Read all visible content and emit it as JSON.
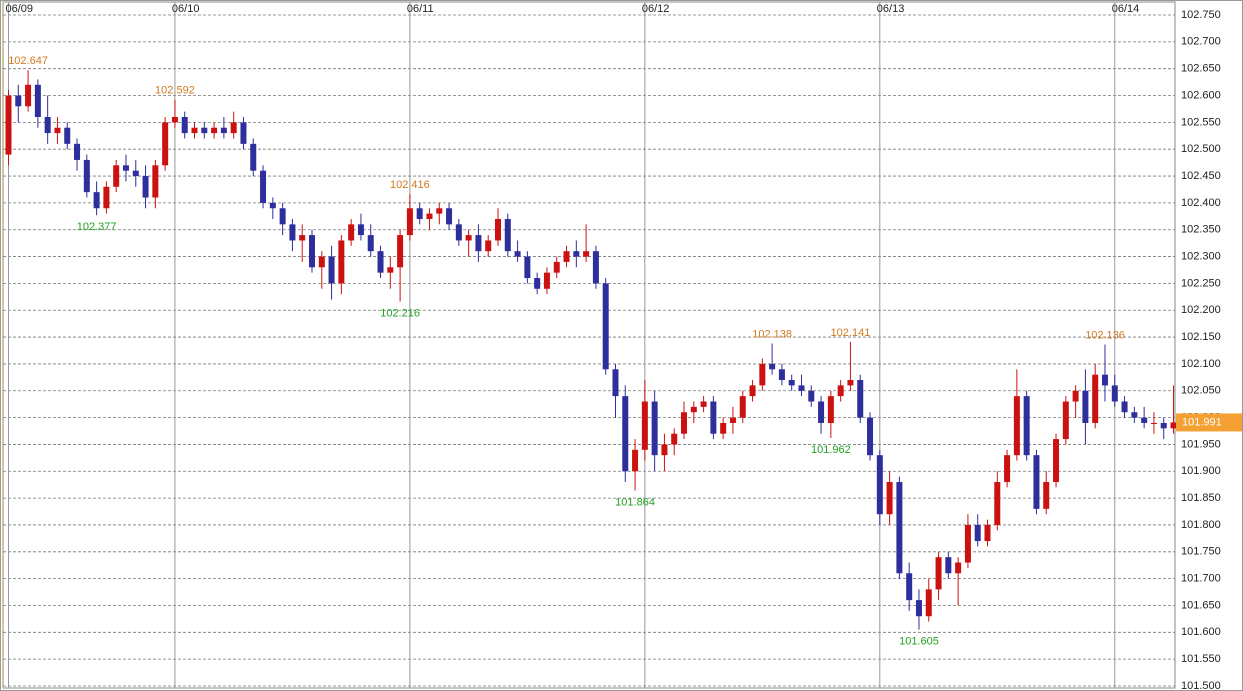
{
  "chart_data": {
    "type": "candlestick",
    "categories": [
      "06/09",
      null,
      null,
      null,
      null,
      null,
      null,
      null,
      null,
      null,
      null,
      null,
      null,
      null,
      null,
      null,
      null,
      "06/10",
      null,
      null,
      null,
      null,
      null,
      null,
      null,
      null,
      null,
      null,
      null,
      null,
      null,
      null,
      null,
      null,
      null,
      null,
      null,
      null,
      null,
      null,
      null,
      "06/11",
      null,
      null,
      null,
      null,
      null,
      null,
      null,
      null,
      null,
      null,
      null,
      null,
      null,
      null,
      null,
      null,
      null,
      null,
      null,
      null,
      null,
      null,
      null,
      "06/12",
      null,
      null,
      null,
      null,
      null,
      null,
      null,
      null,
      null,
      null,
      null,
      null,
      null,
      null,
      null,
      null,
      null,
      null,
      null,
      null,
      null,
      null,
      null,
      "06/13",
      null,
      null,
      null,
      null,
      null,
      null,
      null,
      null,
      null,
      null,
      null,
      null,
      null,
      null,
      null,
      null,
      null,
      null,
      null,
      null,
      null,
      null,
      null,
      "06/14",
      null,
      null,
      null,
      null,
      null,
      null
    ],
    "open": [
      102.49,
      102.6,
      102.58,
      102.62,
      102.56,
      102.53,
      102.54,
      102.51,
      102.48,
      102.42,
      102.39,
      102.43,
      102.47,
      102.46,
      102.45,
      102.41,
      102.47,
      102.55,
      102.56,
      102.53,
      102.54,
      102.53,
      102.54,
      102.53,
      102.55,
      102.51,
      102.46,
      102.4,
      102.39,
      102.36,
      102.33,
      102.34,
      102.28,
      102.3,
      102.25,
      102.33,
      102.36,
      102.34,
      102.31,
      102.27,
      102.28,
      102.34,
      102.39,
      102.37,
      102.38,
      102.39,
      102.36,
      102.33,
      102.34,
      102.31,
      102.33,
      102.37,
      102.31,
      102.3,
      102.26,
      102.24,
      102.27,
      102.29,
      102.31,
      102.3,
      102.31,
      102.25,
      102.09,
      102.04,
      101.9,
      101.94,
      102.03,
      101.93,
      101.95,
      101.97,
      102.01,
      102.02,
      102.03,
      101.97,
      101.99,
      102.0,
      102.04,
      102.06,
      102.1,
      102.09,
      102.07,
      102.06,
      102.05,
      102.03,
      101.99,
      102.04,
      102.06,
      102.07,
      102.0,
      101.93,
      101.82,
      101.88,
      101.71,
      101.66,
      101.63,
      101.68,
      101.74,
      101.71,
      101.73,
      101.8,
      101.77,
      101.8,
      101.88,
      101.93,
      102.04,
      101.93,
      101.83,
      101.88,
      101.96,
      102.03,
      102.05,
      101.99,
      102.08,
      102.06,
      102.03,
      102.01,
      102.0,
      101.99,
      101.99,
      101.98
    ],
    "high": [
      102.61,
      102.62,
      102.647,
      102.63,
      102.6,
      102.56,
      102.55,
      102.52,
      102.49,
      102.44,
      102.44,
      102.48,
      102.49,
      102.48,
      102.47,
      102.48,
      102.56,
      102.592,
      102.57,
      102.55,
      102.55,
      102.55,
      102.56,
      102.57,
      102.56,
      102.52,
      102.47,
      102.41,
      102.4,
      102.37,
      102.36,
      102.35,
      102.31,
      102.32,
      102.34,
      102.37,
      102.38,
      102.36,
      102.32,
      102.3,
      102.35,
      102.416,
      102.4,
      102.39,
      102.4,
      102.4,
      102.37,
      102.35,
      102.36,
      102.34,
      102.39,
      102.38,
      102.33,
      102.31,
      102.27,
      102.28,
      102.3,
      102.32,
      102.33,
      102.36,
      102.32,
      102.26,
      102.1,
      102.06,
      101.96,
      102.07,
      102.05,
      101.97,
      101.98,
      102.03,
      102.03,
      102.04,
      102.04,
      102.0,
      102.02,
      102.05,
      102.07,
      102.11,
      102.138,
      102.1,
      102.08,
      102.08,
      102.06,
      102.04,
      102.05,
      102.07,
      102.141,
      102.08,
      102.01,
      101.94,
      101.9,
      101.89,
      101.73,
      101.68,
      101.7,
      101.75,
      101.75,
      101.74,
      101.82,
      101.82,
      101.81,
      101.9,
      101.94,
      102.09,
      102.05,
      101.94,
      101.9,
      101.97,
      102.04,
      102.06,
      102.09,
      102.1,
      102.136,
      102.08,
      102.04,
      102.02,
      102.02,
      102.01,
      102.0,
      102.06
    ],
    "low": [
      102.47,
      102.55,
      102.57,
      102.54,
      102.51,
      102.51,
      102.5,
      102.46,
      102.41,
      102.377,
      102.38,
      102.42,
      102.44,
      102.43,
      102.39,
      102.39,
      102.46,
      102.54,
      102.52,
      102.52,
      102.52,
      102.52,
      102.52,
      102.52,
      102.5,
      102.45,
      102.39,
      102.37,
      102.34,
      102.31,
      102.29,
      102.27,
      102.24,
      102.22,
      102.23,
      102.32,
      102.33,
      102.3,
      102.26,
      102.24,
      102.216,
      102.33,
      102.36,
      102.35,
      102.36,
      102.35,
      102.32,
      102.3,
      102.29,
      102.3,
      102.32,
      102.3,
      102.29,
      102.25,
      102.23,
      102.23,
      102.26,
      102.28,
      102.28,
      102.29,
      102.24,
      102.08,
      102.0,
      101.88,
      101.864,
      101.92,
      101.9,
      101.9,
      101.93,
      101.96,
      101.99,
      102.01,
      101.96,
      101.96,
      101.97,
      101.99,
      102.03,
      102.05,
      102.08,
      102.06,
      102.05,
      102.04,
      102.02,
      101.97,
      101.962,
      102.03,
      102.05,
      101.99,
      101.92,
      101.8,
      101.8,
      101.7,
      101.64,
      101.605,
      101.62,
      101.66,
      101.7,
      101.65,
      101.72,
      101.76,
      101.76,
      101.79,
      101.87,
      101.92,
      101.92,
      101.82,
      101.82,
      101.87,
      101.95,
      102.0,
      101.95,
      101.98,
      102.03,
      102.02,
      102.0,
      101.99,
      101.98,
      101.97,
      101.96,
      101.97
    ],
    "close": [
      102.6,
      102.58,
      102.62,
      102.56,
      102.53,
      102.54,
      102.51,
      102.48,
      102.42,
      102.39,
      102.43,
      102.47,
      102.46,
      102.45,
      102.41,
      102.47,
      102.55,
      102.56,
      102.53,
      102.54,
      102.53,
      102.54,
      102.53,
      102.55,
      102.51,
      102.46,
      102.4,
      102.39,
      102.36,
      102.33,
      102.34,
      102.28,
      102.3,
      102.25,
      102.33,
      102.36,
      102.34,
      102.31,
      102.27,
      102.28,
      102.34,
      102.39,
      102.37,
      102.38,
      102.39,
      102.36,
      102.33,
      102.34,
      102.31,
      102.33,
      102.37,
      102.31,
      102.3,
      102.26,
      102.24,
      102.27,
      102.29,
      102.31,
      102.3,
      102.31,
      102.25,
      102.09,
      102.04,
      101.9,
      101.94,
      102.03,
      101.93,
      101.95,
      101.97,
      102.01,
      102.02,
      102.03,
      101.97,
      101.99,
      102.0,
      102.04,
      102.06,
      102.1,
      102.09,
      102.07,
      102.06,
      102.05,
      102.03,
      101.99,
      102.04,
      102.06,
      102.07,
      102.0,
      101.93,
      101.82,
      101.88,
      101.71,
      101.66,
      101.63,
      101.68,
      101.74,
      101.71,
      101.73,
      101.8,
      101.77,
      101.8,
      101.88,
      101.93,
      102.04,
      101.93,
      101.83,
      101.88,
      101.96,
      102.03,
      102.05,
      101.99,
      102.08,
      102.06,
      102.03,
      102.01,
      102.0,
      101.99,
      101.99,
      101.98,
      101.991
    ],
    "labeled_highs": [
      2,
      17,
      41,
      78,
      86,
      112
    ],
    "labeled_lows": [
      9,
      40,
      64,
      84,
      93
    ],
    "ylim": [
      101.5,
      102.75
    ],
    "yticks": [
      {
        "value": 101.5,
        "label": "101.500"
      },
      {
        "value": 101.55,
        "label": "101.550"
      },
      {
        "value": 101.6,
        "label": "101.600"
      },
      {
        "value": 101.65,
        "label": "101.650"
      },
      {
        "value": 101.7,
        "label": "101.700"
      },
      {
        "value": 101.75,
        "label": "101.750"
      },
      {
        "value": 101.8,
        "label": "101.800"
      },
      {
        "value": 101.85,
        "label": "101.850"
      },
      {
        "value": 101.9,
        "label": "101.900"
      },
      {
        "value": 101.95,
        "label": "101.950"
      },
      {
        "value": 102.0,
        "label": "102.000"
      },
      {
        "value": 102.05,
        "label": "102.050"
      },
      {
        "value": 102.1,
        "label": "102.100"
      },
      {
        "value": 102.15,
        "label": "102.150"
      },
      {
        "value": 102.2,
        "label": "102.200"
      },
      {
        "value": 102.25,
        "label": "102.250"
      },
      {
        "value": 102.3,
        "label": "102.300"
      },
      {
        "value": 102.35,
        "label": "102.350"
      },
      {
        "value": 102.4,
        "label": "102.400"
      },
      {
        "value": 102.45,
        "label": "102.450"
      },
      {
        "value": 102.5,
        "label": "102.500"
      },
      {
        "value": 102.55,
        "label": "102.550"
      },
      {
        "value": 102.6,
        "label": "102.600"
      },
      {
        "value": 102.65,
        "label": "102.650"
      },
      {
        "value": 102.7,
        "label": "102.700"
      },
      {
        "value": 102.75,
        "label": "102.750"
      }
    ],
    "grid": true,
    "up_color": "#cc1111",
    "down_color": "#2e2e9c",
    "high_label_color": "#d07a20",
    "low_label_color": "#22a022",
    "price_box_color": "#f5a033"
  }
}
